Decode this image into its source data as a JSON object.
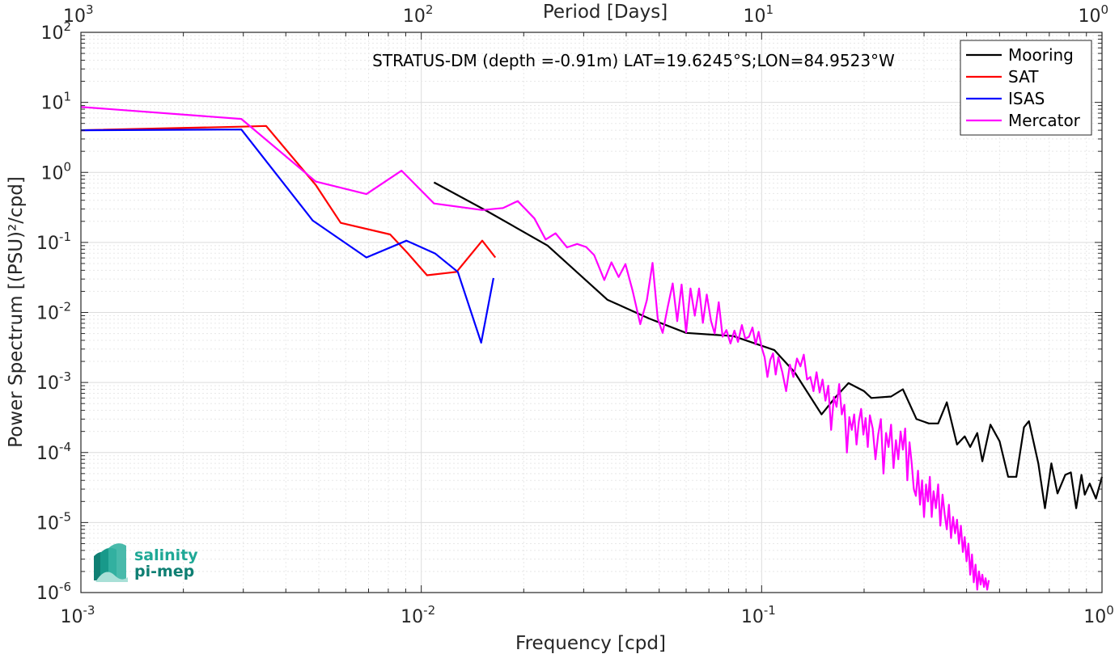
{
  "colors": {
    "mooring": "#000000",
    "sat": "#ff0000",
    "isas": "#0000ff",
    "mercator": "#ff00ff",
    "logo_teal": "#1fa896"
  },
  "logo": {
    "line1": "salinity",
    "line2": "pi-mep"
  },
  "chart_data": {
    "type": "line",
    "title": "STRATUS-DM (depth =-0.91m) LAT=19.6245°S;LON=84.9523°W",
    "xlabel": "Frequency [cpd]",
    "ylabel": "Power Spectrum [(PSU)²/cpd]",
    "top_xlabel": "Period [Days]",
    "xscale": "log",
    "yscale": "log",
    "xlim": [
      0.001,
      1
    ],
    "ylim": [
      1e-06,
      100
    ],
    "x_ticks": [
      0.001,
      0.01,
      0.1,
      1
    ],
    "y_ticks": [
      1e-06,
      1e-05,
      0.0001,
      0.001,
      0.01,
      0.1,
      1,
      10,
      100
    ],
    "top_ticks": [
      1000,
      100,
      10,
      1
    ],
    "grid": true,
    "legend_position": "top-right",
    "series": [
      {
        "name": "Mooring",
        "color_key": "mooring",
        "points": [
          [
            0.0109,
            0.72
          ],
          [
            0.0156,
            0.28
          ],
          [
            0.0235,
            0.09
          ],
          [
            0.0352,
            0.0152
          ],
          [
            0.0467,
            0.0082
          ],
          [
            0.06,
            0.0051
          ],
          [
            0.0825,
            0.0046
          ],
          [
            0.109,
            0.0029
          ],
          [
            0.125,
            0.0014
          ],
          [
            0.15,
            0.00035
          ],
          [
            0.165,
            0.00062
          ],
          [
            0.18,
            0.00098
          ],
          [
            0.2,
            0.00075
          ],
          [
            0.21,
            0.0006
          ],
          [
            0.24,
            0.00063
          ],
          [
            0.26,
            0.0008
          ],
          [
            0.285,
            0.0003
          ],
          [
            0.31,
            0.00026
          ],
          [
            0.33,
            0.00026
          ],
          [
            0.35,
            0.00052
          ],
          [
            0.375,
            0.00013
          ],
          [
            0.395,
            0.00017
          ],
          [
            0.41,
            0.00012
          ],
          [
            0.43,
            0.00019
          ],
          [
            0.445,
            7.5e-05
          ],
          [
            0.47,
            0.00025
          ],
          [
            0.5,
            0.000145
          ],
          [
            0.53,
            4.5e-05
          ],
          [
            0.56,
            4.5e-05
          ],
          [
            0.59,
            0.00023
          ],
          [
            0.61,
            0.00028
          ],
          [
            0.65,
            7e-05
          ],
          [
            0.68,
            1.6e-05
          ],
          [
            0.71,
            7e-05
          ],
          [
            0.74,
            2.6e-05
          ],
          [
            0.78,
            4.8e-05
          ],
          [
            0.81,
            5.2e-05
          ],
          [
            0.84,
            1.6e-05
          ],
          [
            0.87,
            4.8e-05
          ],
          [
            0.89,
            2.5e-05
          ],
          [
            0.92,
            3.6e-05
          ],
          [
            0.96,
            2.2e-05
          ],
          [
            1.0,
            4.5e-05
          ]
        ]
      },
      {
        "name": "SAT",
        "color_key": "sat",
        "points": [
          [
            0.001,
            4.0
          ],
          [
            0.00296,
            4.5
          ],
          [
            0.0035,
            4.6
          ],
          [
            0.0049,
            0.66
          ],
          [
            0.0058,
            0.19
          ],
          [
            0.0081,
            0.13
          ],
          [
            0.00915,
            0.069
          ],
          [
            0.0104,
            0.034
          ],
          [
            0.0127,
            0.038
          ],
          [
            0.0151,
            0.106
          ],
          [
            0.0165,
            0.061
          ]
        ]
      },
      {
        "name": "ISAS",
        "color_key": "isas",
        "points": [
          [
            0.001,
            4.0
          ],
          [
            0.00296,
            4.1
          ],
          [
            0.0048,
            0.205
          ],
          [
            0.0069,
            0.061
          ],
          [
            0.00905,
            0.106
          ],
          [
            0.011,
            0.069
          ],
          [
            0.0128,
            0.038
          ],
          [
            0.015,
            0.0037
          ],
          [
            0.0163,
            0.031
          ]
        ]
      },
      {
        "name": "Mercator",
        "color_key": "mercator",
        "points": [
          [
            0.001,
            8.6
          ],
          [
            0.00296,
            5.8
          ],
          [
            0.0049,
            0.74
          ],
          [
            0.0069,
            0.49
          ],
          [
            0.00875,
            1.06
          ],
          [
            0.0109,
            0.36
          ],
          [
            0.0151,
            0.29
          ],
          [
            0.0174,
            0.31
          ],
          [
            0.0192,
            0.39
          ],
          [
            0.0215,
            0.22
          ],
          [
            0.0232,
            0.11
          ],
          [
            0.0248,
            0.135
          ],
          [
            0.0268,
            0.085
          ],
          [
            0.0287,
            0.095
          ],
          [
            0.0305,
            0.086
          ],
          [
            0.0322,
            0.066
          ],
          [
            0.0345,
            0.029
          ],
          [
            0.0362,
            0.052
          ],
          [
            0.038,
            0.032
          ],
          [
            0.0398,
            0.049
          ],
          [
            0.0418,
            0.0201
          ],
          [
            0.044,
            0.0068
          ],
          [
            0.046,
            0.015
          ],
          [
            0.0478,
            0.051
          ],
          [
            0.0495,
            0.0082
          ],
          [
            0.0512,
            0.0051
          ],
          [
            0.053,
            0.012
          ],
          [
            0.0548,
            0.026
          ],
          [
            0.0565,
            0.0075
          ],
          [
            0.0582,
            0.025
          ],
          [
            0.06,
            0.0052
          ],
          [
            0.0618,
            0.022
          ],
          [
            0.0636,
            0.009
          ],
          [
            0.0655,
            0.022
          ],
          [
            0.0672,
            0.0071
          ],
          [
            0.069,
            0.018
          ],
          [
            0.071,
            0.0075
          ],
          [
            0.0728,
            0.005
          ],
          [
            0.0748,
            0.014
          ],
          [
            0.0768,
            0.0045
          ],
          [
            0.0788,
            0.0056
          ],
          [
            0.081,
            0.0036
          ],
          [
            0.0832,
            0.0055
          ],
          [
            0.0852,
            0.0038
          ],
          [
            0.0875,
            0.0066
          ],
          [
            0.0895,
            0.0042
          ],
          [
            0.0918,
            0.0045
          ],
          [
            0.094,
            0.0061
          ],
          [
            0.096,
            0.0035
          ],
          [
            0.098,
            0.0053
          ],
          [
            0.1,
            0.0032
          ],
          [
            0.102,
            0.0023
          ],
          [
            0.104,
            0.0012
          ],
          [
            0.106,
            0.0021
          ],
          [
            0.108,
            0.0026
          ],
          [
            0.11,
            0.0013
          ],
          [
            0.112,
            0.0023
          ],
          [
            0.115,
            0.0014
          ],
          [
            0.118,
            0.00075
          ],
          [
            0.121,
            0.0018
          ],
          [
            0.124,
            0.0012
          ],
          [
            0.127,
            0.0022
          ],
          [
            0.13,
            0.0017
          ],
          [
            0.133,
            0.0025
          ],
          [
            0.136,
            0.0011
          ],
          [
            0.139,
            0.0012
          ],
          [
            0.142,
            0.00075
          ],
          [
            0.145,
            0.0014
          ],
          [
            0.148,
            0.00072
          ],
          [
            0.151,
            0.0011
          ],
          [
            0.154,
            0.00055
          ],
          [
            0.157,
            0.0009
          ],
          [
            0.16,
            0.00021
          ],
          [
            0.163,
            0.00062
          ],
          [
            0.166,
            0.00045
          ],
          [
            0.169,
            0.00095
          ],
          [
            0.172,
            0.00035
          ],
          [
            0.175,
            0.00048
          ],
          [
            0.178,
            0.0001
          ],
          [
            0.181,
            0.00032
          ],
          [
            0.184,
            0.00021
          ],
          [
            0.187,
            0.00035
          ],
          [
            0.19,
            0.00013
          ],
          [
            0.193,
            0.00028
          ],
          [
            0.196,
            0.00042
          ],
          [
            0.199,
            0.00018
          ],
          [
            0.202,
            0.00031
          ],
          [
            0.205,
            0.00012
          ],
          [
            0.208,
            0.00034
          ],
          [
            0.212,
            0.00022
          ],
          [
            0.216,
            8e-05
          ],
          [
            0.22,
            0.00018
          ],
          [
            0.224,
            0.0003
          ],
          [
            0.228,
            5e-05
          ],
          [
            0.232,
            0.00019
          ],
          [
            0.236,
            0.00012
          ],
          [
            0.24,
            0.00025
          ],
          [
            0.244,
            6e-05
          ],
          [
            0.248,
            0.00015
          ],
          [
            0.252,
            8e-05
          ],
          [
            0.256,
            0.0002
          ],
          [
            0.26,
            0.00011
          ],
          [
            0.264,
            0.00022
          ],
          [
            0.268,
            4e-05
          ],
          [
            0.272,
            0.00014
          ],
          [
            0.276,
            7e-05
          ],
          [
            0.28,
            3e-05
          ],
          [
            0.284,
            2.4e-05
          ],
          [
            0.288,
            5.5e-05
          ],
          [
            0.292,
            1.8e-05
          ],
          [
            0.296,
            4e-05
          ],
          [
            0.3,
            1.2e-05
          ],
          [
            0.304,
            3.5e-05
          ],
          [
            0.308,
            2e-05
          ],
          [
            0.312,
            4.5e-05
          ],
          [
            0.316,
            1.2e-05
          ],
          [
            0.32,
            2.8e-05
          ],
          [
            0.325,
            1.6e-05
          ],
          [
            0.33,
            3.5e-05
          ],
          [
            0.335,
            9e-06
          ],
          [
            0.34,
            2.5e-05
          ],
          [
            0.345,
            1.3e-05
          ],
          [
            0.35,
            8e-06
          ],
          [
            0.355,
            1.8e-05
          ],
          [
            0.36,
            6e-06
          ],
          [
            0.365,
            1.2e-05
          ],
          [
            0.37,
            7e-06
          ],
          [
            0.375,
            1.1e-05
          ],
          [
            0.38,
            5e-06
          ],
          [
            0.385,
            9e-06
          ],
          [
            0.39,
            3.8e-06
          ],
          [
            0.395,
            6.2e-06
          ],
          [
            0.4,
            2.8e-06
          ],
          [
            0.405,
            5e-06
          ],
          [
            0.41,
            1.8e-06
          ],
          [
            0.415,
            3.5e-06
          ],
          [
            0.42,
            1.4e-06
          ],
          [
            0.425,
            2.5e-06
          ],
          [
            0.43,
            1.1e-06
          ],
          [
            0.435,
            2e-06
          ],
          [
            0.44,
            1.3e-06
          ],
          [
            0.445,
            1.8e-06
          ],
          [
            0.45,
            1.2e-06
          ],
          [
            0.455,
            1.6e-06
          ],
          [
            0.46,
            1.1e-06
          ],
          [
            0.465,
            1.5e-06
          ]
        ]
      }
    ]
  }
}
